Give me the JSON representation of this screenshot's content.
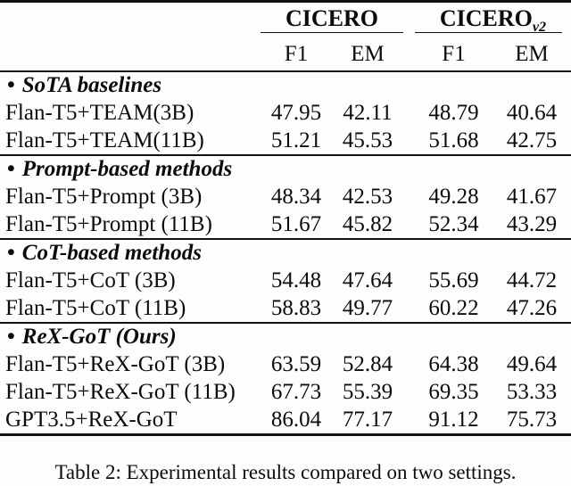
{
  "table": {
    "bullet": "•",
    "col_groups": [
      {
        "title": "CICERO",
        "subscript": ""
      },
      {
        "title": "CICERO",
        "subscript": "v2"
      }
    ],
    "metric_headers": [
      "F1",
      "EM",
      "F1",
      "EM"
    ],
    "sections": [
      {
        "header": "SoTA baselines",
        "rows": [
          {
            "label": "Flan-T5+TEAM(3B)",
            "values": [
              "47.95",
              "42.11",
              "48.79",
              "40.64"
            ]
          },
          {
            "label": "Flan-T5+TEAM(11B)",
            "values": [
              "51.21",
              "45.53",
              "51.68",
              "42.75"
            ]
          }
        ]
      },
      {
        "header": "Prompt-based methods",
        "rows": [
          {
            "label": "Flan-T5+Prompt (3B)",
            "values": [
              "48.34",
              "42.53",
              "49.28",
              "41.67"
            ]
          },
          {
            "label": "Flan-T5+Prompt (11B)",
            "values": [
              "51.67",
              "45.82",
              "52.34",
              "43.29"
            ]
          }
        ]
      },
      {
        "header": "CoT-based methods",
        "rows": [
          {
            "label": "Flan-T5+CoT (3B)",
            "values": [
              "54.48",
              "47.64",
              "55.69",
              "44.72"
            ]
          },
          {
            "label": "Flan-T5+CoT (11B)",
            "values": [
              "58.83",
              "49.77",
              "60.22",
              "47.26"
            ]
          }
        ]
      },
      {
        "header": "ReX-GoT (Ours)",
        "rows": [
          {
            "label": "Flan-T5+ReX-GoT (3B)",
            "values": [
              "63.59",
              "52.84",
              "64.38",
              "49.64"
            ]
          },
          {
            "label": "Flan-T5+ReX-GoT (11B)",
            "values": [
              "67.73",
              "55.39",
              "69.35",
              "53.33"
            ]
          },
          {
            "label": "GPT3.5+ReX-GoT",
            "values": [
              "86.04",
              "77.17",
              "91.12",
              "75.73"
            ]
          }
        ]
      }
    ]
  },
  "caption": "Table 2: Experimental results compared on two settings."
}
